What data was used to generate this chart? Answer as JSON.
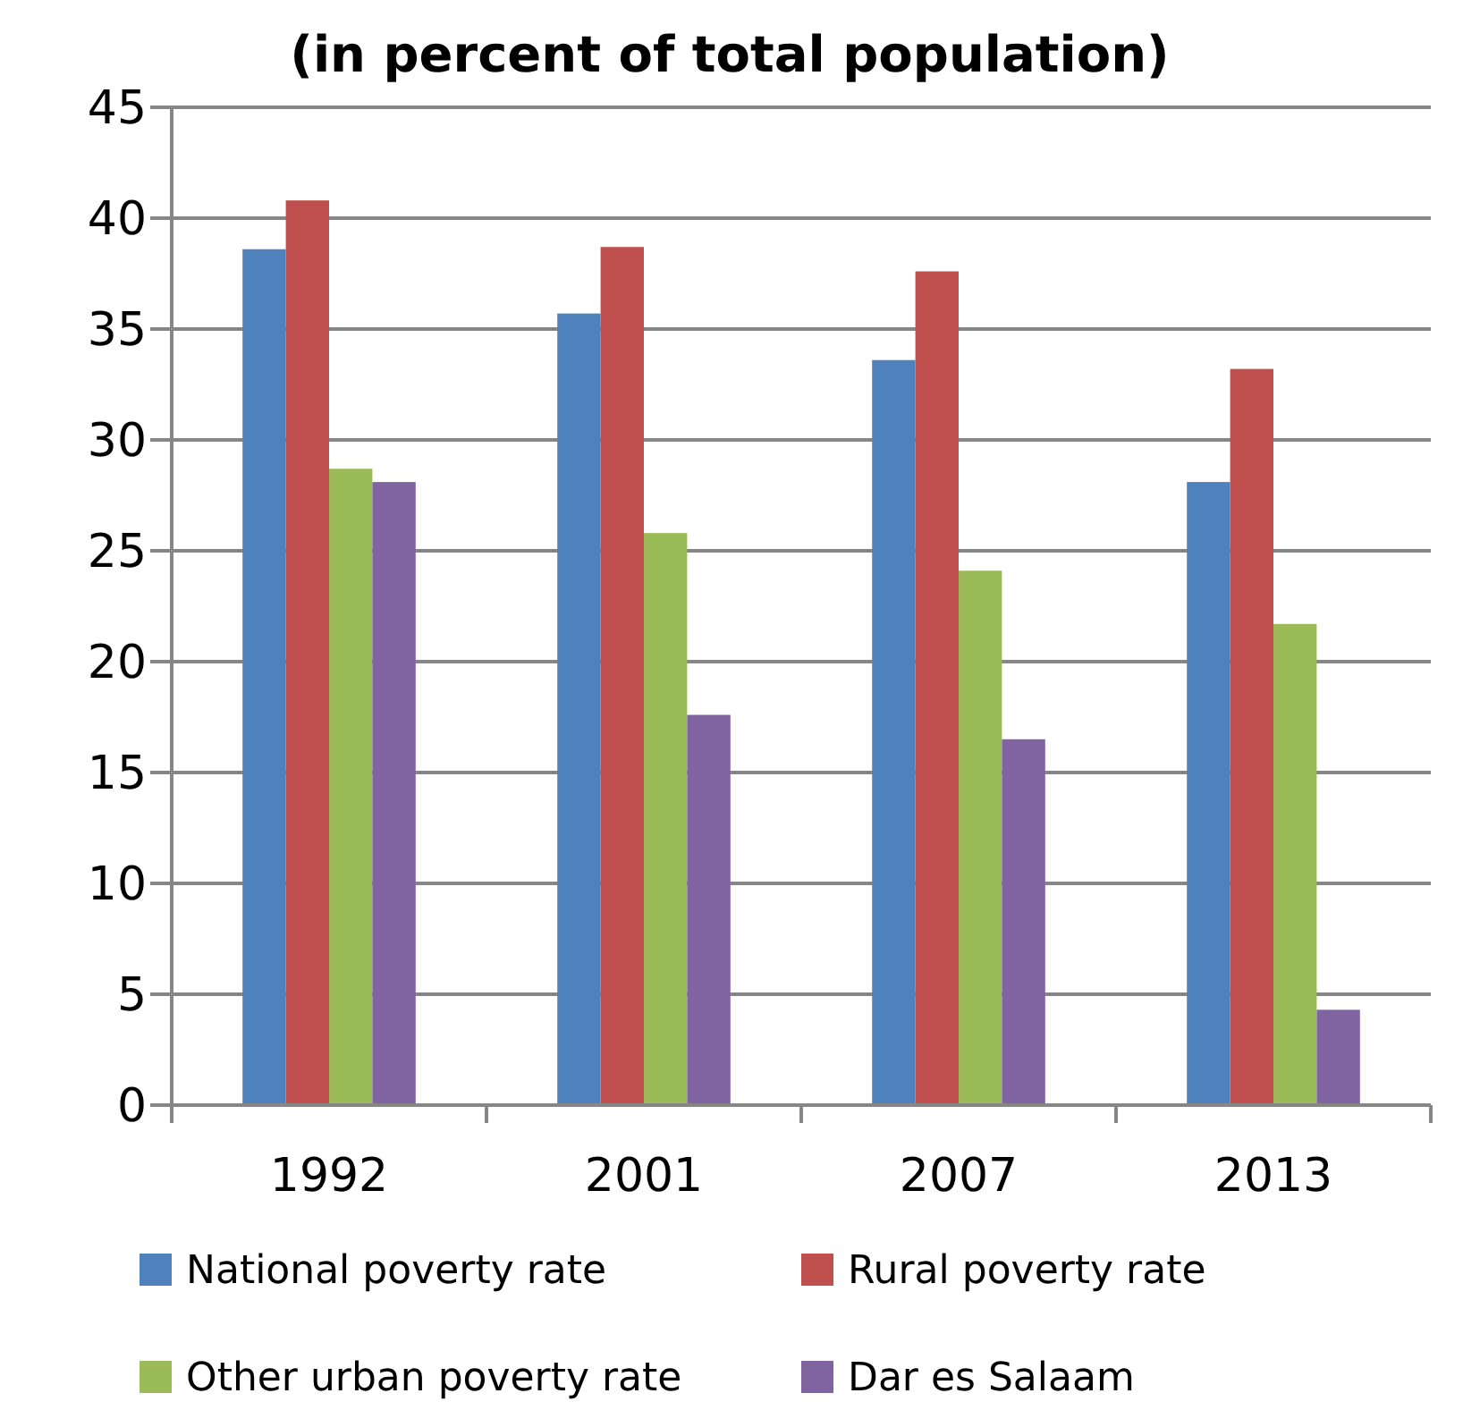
{
  "chart_data": {
    "type": "bar",
    "title": "(in percent of total population)",
    "categories": [
      "1992",
      "2001",
      "2007",
      "2013"
    ],
    "series": [
      {
        "name": "National poverty rate",
        "color": "#4f81bd",
        "values": [
          38.6,
          35.7,
          33.6,
          28.1
        ]
      },
      {
        "name": "Rural poverty rate",
        "color": "#c0504d",
        "values": [
          40.8,
          38.7,
          37.6,
          33.2
        ]
      },
      {
        "name": "Other urban poverty rate",
        "color": "#9bbb59",
        "values": [
          28.7,
          25.8,
          24.1,
          21.7
        ]
      },
      {
        "name": "Dar es Salaam",
        "color": "#8064a2",
        "values": [
          28.1,
          17.6,
          16.5,
          4.3
        ]
      }
    ],
    "ylim": [
      0,
      45
    ],
    "yticks": [
      0,
      5,
      10,
      15,
      20,
      25,
      30,
      35,
      40,
      45
    ],
    "grid": "y",
    "legend": "bottom"
  }
}
